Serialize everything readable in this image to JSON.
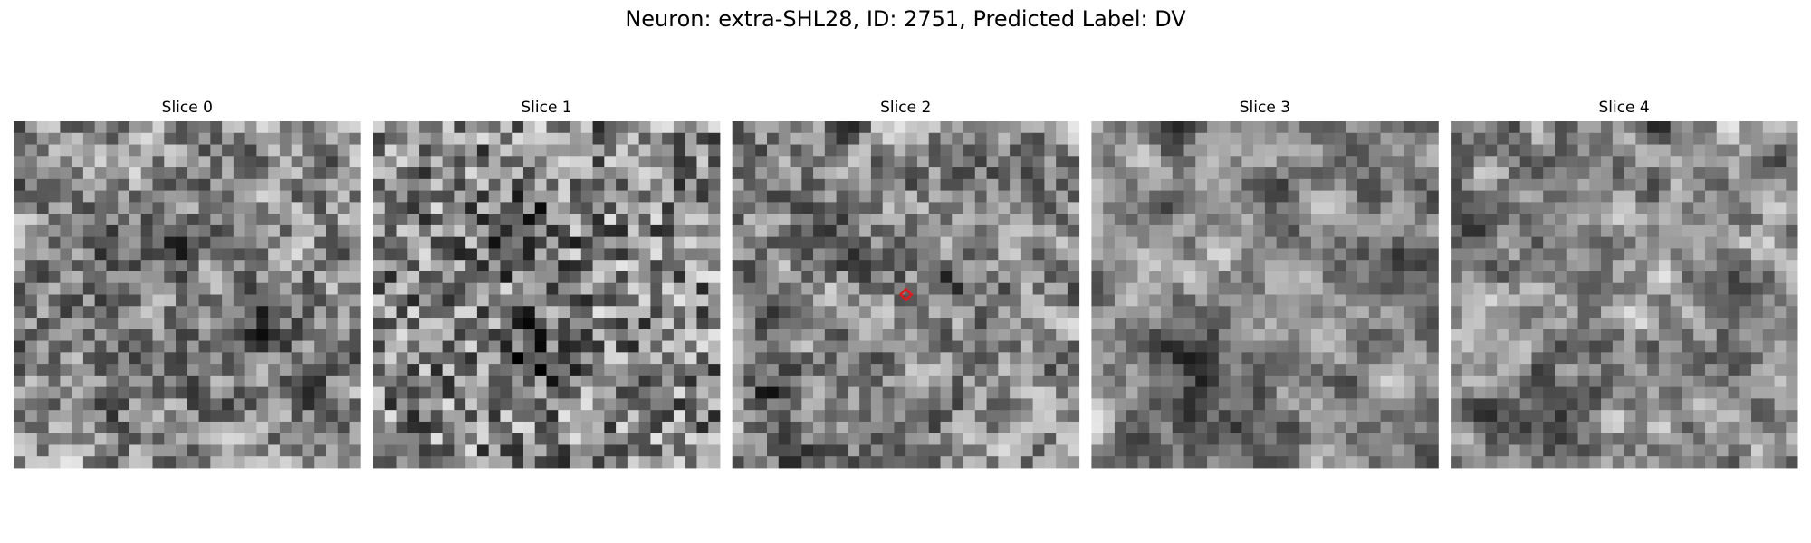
{
  "header": {
    "title": "Neuron: extra-SHL28, ID: 2751, Predicted Label: DV"
  },
  "panels": [
    {
      "title": "Slice 0"
    },
    {
      "title": "Slice 1"
    },
    {
      "title": "Slice 2"
    },
    {
      "title": "Slice 3"
    },
    {
      "title": "Slice 4"
    }
  ]
}
